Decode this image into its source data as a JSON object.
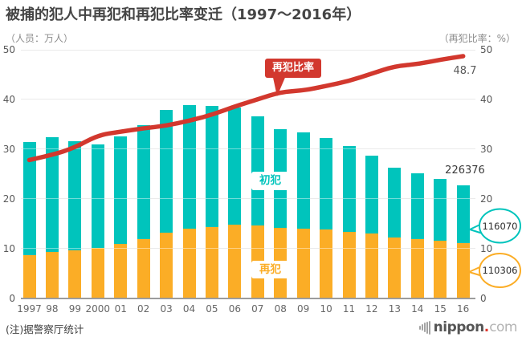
{
  "title": "被捕的犯人中再犯和再犯比率变迁（1997～2016年）",
  "axis_caption_left": "（人员：万人）",
  "axis_caption_right": "（再犯比率：%）",
  "source_note": "(注)据警察厅统计",
  "logo": {
    "name": "nippon",
    "dot": ".",
    "tld": "com"
  },
  "colors": {
    "bar_repeat_orange": "#fbad26",
    "bar_first_teal": "#00c4bc",
    "rate_line_red": "#d2382e",
    "grid_gray": "#d9d9d9"
  },
  "chart_data": {
    "type": "bar",
    "stacked": true,
    "title": "被捕的犯人中再犯和再犯比率变迁（1997～2016年）",
    "xlabel": "",
    "ylabel": "（人员：万人）",
    "y2label": "（再犯比率：%）",
    "ylim": [
      0,
      50
    ],
    "y2lim": [
      0,
      50
    ],
    "y_ticks": [
      0,
      10,
      20,
      30,
      40,
      50
    ],
    "grid": true,
    "legend_position": "none",
    "categories": [
      "1997",
      "98",
      "99",
      "2000",
      "01",
      "02",
      "03",
      "04",
      "05",
      "06",
      "07",
      "08",
      "09",
      "10",
      "11",
      "12",
      "13",
      "14",
      "15",
      "16"
    ],
    "series": [
      {
        "name": "再犯",
        "role": "repeat-offenders",
        "unit": "万人",
        "color": "#fbad26",
        "values": [
          8.7,
          9.33,
          9.57,
          10.14,
          10.89,
          11.89,
          13.16,
          13.9,
          14.27,
          14.83,
          14.64,
          14.09,
          13.93,
          13.76,
          13.38,
          12.98,
          12.26,
          11.82,
          11.48,
          11.03
        ]
      },
      {
        "name": "初犯",
        "role": "first-offenders",
        "unit": "万人",
        "color": "#00c4bc",
        "values": [
          22.66,
          23.1,
          21.97,
          20.82,
          21.64,
          22.87,
          24.8,
          25.03,
          24.43,
          23.6,
          21.92,
          19.89,
          19.36,
          18.5,
          17.22,
          15.72,
          13.99,
          13.29,
          12.46,
          11.61
        ]
      }
    ],
    "line_series": {
      "name": "再犯比率",
      "unit": "%",
      "axis": "right",
      "color": "#d2382e",
      "values": [
        27.8,
        28.8,
        30.3,
        32.8,
        33.5,
        34.2,
        34.7,
        35.7,
        36.9,
        38.6,
        40.0,
        41.5,
        41.8,
        42.7,
        43.7,
        45.2,
        46.7,
        47.1,
        48.0,
        48.7
      ]
    },
    "labels": {
      "line_badge": "再犯比率",
      "first_badge": "初犯",
      "repeat_badge": "再犯"
    },
    "annotations": {
      "rate_final": "48.7",
      "total_final": "226376",
      "first_final": "116070",
      "repeat_final": "110306"
    }
  }
}
